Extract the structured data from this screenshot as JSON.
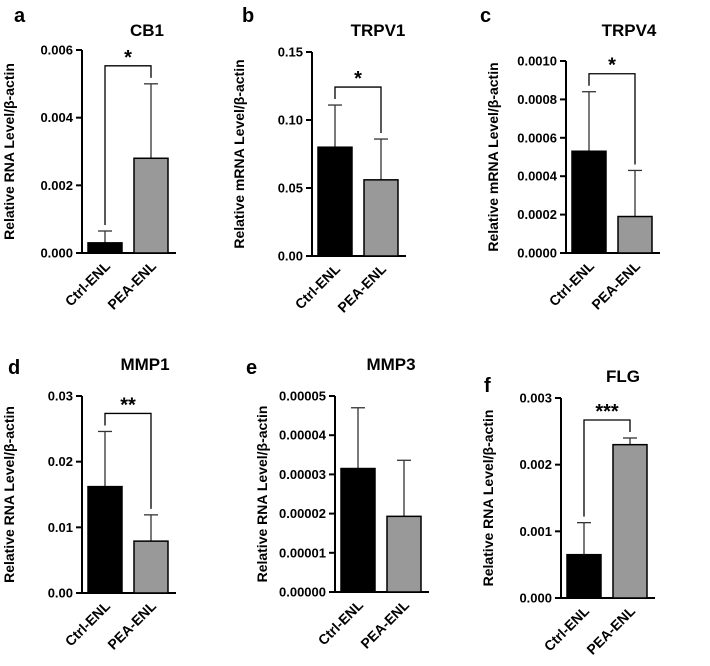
{
  "chart_data": [
    {
      "panel": "a",
      "type": "bar",
      "title": "CB1",
      "ylabel": "Relative RNA Level/β-actin",
      "categories": [
        "Ctrl-ENL",
        "PEA-ENL"
      ],
      "values": [
        0.0003,
        0.0028
      ],
      "errors": [
        0.00035,
        0.0022
      ],
      "colors": [
        "#000000",
        "#999999"
      ],
      "ylim": [
        0,
        0.006
      ],
      "yticks": [
        "0.000",
        "0.002",
        "0.004",
        "0.006"
      ],
      "significance": "*"
    },
    {
      "panel": "b",
      "type": "bar",
      "title": "TRPV1",
      "ylabel": "Relative mRNA Level/β-actin",
      "categories": [
        "Ctrl-ENL",
        "PEA-ENL"
      ],
      "values": [
        0.08,
        0.056
      ],
      "errors": [
        0.031,
        0.03
      ],
      "colors": [
        "#000000",
        "#999999"
      ],
      "ylim": [
        0,
        0.15
      ],
      "yticks": [
        "0.00",
        "0.05",
        "0.10",
        "0.15"
      ],
      "significance": "*"
    },
    {
      "panel": "c",
      "type": "bar",
      "title": "TRPV4",
      "ylabel": "Relative mRNA Level/β-actin",
      "categories": [
        "Ctrl-ENL",
        "PEA-ENL"
      ],
      "values": [
        0.00053,
        0.00019
      ],
      "errors": [
        0.00031,
        0.00024
      ],
      "colors": [
        "#000000",
        "#999999"
      ],
      "ylim": [
        0,
        0.001
      ],
      "yticks": [
        "0.0000",
        "0.0002",
        "0.0004",
        "0.0006",
        "0.0008",
        "0.0010"
      ],
      "significance": "*"
    },
    {
      "panel": "d",
      "type": "bar",
      "title": "MMP1",
      "ylabel": "Relative RNA Level/β-actin",
      "categories": [
        "Ctrl-ENL",
        "PEA-ENL"
      ],
      "values": [
        0.0162,
        0.0079
      ],
      "errors": [
        0.0084,
        0.004
      ],
      "colors": [
        "#000000",
        "#999999"
      ],
      "ylim": [
        0,
        0.03
      ],
      "yticks": [
        "0.00",
        "0.01",
        "0.02",
        "0.03"
      ],
      "significance": "**"
    },
    {
      "panel": "e",
      "type": "bar",
      "title": "MMP3",
      "ylabel": "Relative RNA Level/β-actin",
      "categories": [
        "Ctrl-ENL",
        "PEA-ENL"
      ],
      "values": [
        3.15e-05,
        1.93e-05
      ],
      "errors": [
        1.55e-05,
        1.43e-05
      ],
      "colors": [
        "#000000",
        "#999999"
      ],
      "ylim": [
        0,
        5e-05
      ],
      "yticks": [
        "0.00000",
        "0.00001",
        "0.00002",
        "0.00003",
        "0.00004",
        "0.00005"
      ],
      "significance": ""
    },
    {
      "panel": "f",
      "type": "bar",
      "title": "FLG",
      "ylabel": "Relative RNA Level/β-actin",
      "categories": [
        "Ctrl-ENL",
        "PEA-ENL"
      ],
      "values": [
        0.00065,
        0.0023
      ],
      "errors": [
        0.00048,
        0.0001
      ],
      "colors": [
        "#000000",
        "#999999"
      ],
      "ylim": [
        0,
        0.003
      ],
      "yticks": [
        "0.000",
        "0.001",
        "0.002",
        "0.003"
      ],
      "significance": "***"
    }
  ]
}
